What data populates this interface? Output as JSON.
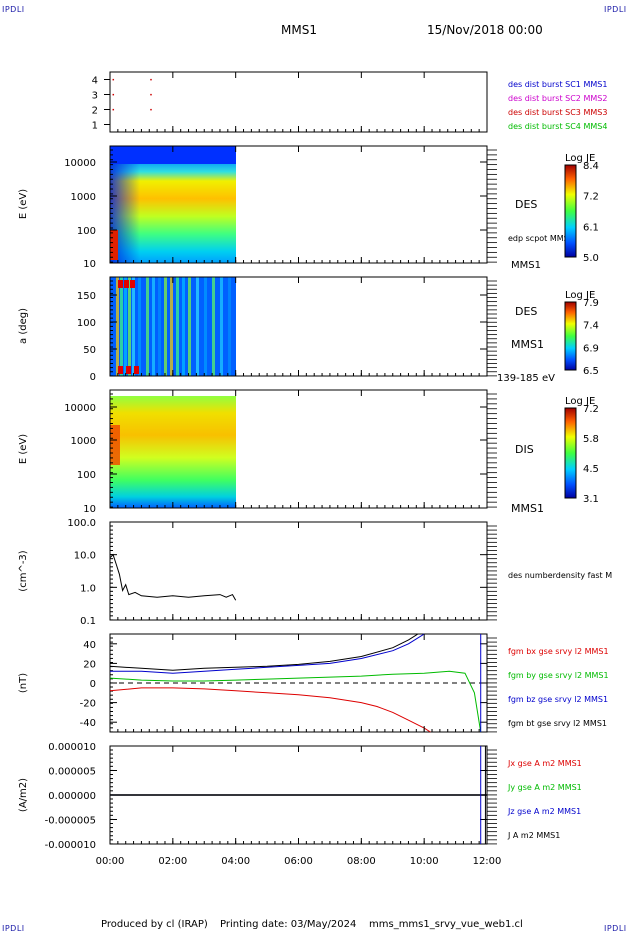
{
  "header": {
    "corner_label": "IPDLI",
    "spacecraft": "MMS1",
    "datetime": "15/Nov/2018 00:00"
  },
  "footer": {
    "produced_by": "Produced by cl (IRAP)",
    "printing_date": "Printing date: 03/May/2024",
    "filename": "mms_mms1_srvy_vue_web1.cl"
  },
  "colors": {
    "mms1": "#0000cc",
    "mms2": "#cc00cc",
    "mms3": "#cc0000",
    "mms4": "#00bb00",
    "black": "#000000",
    "blue": "#0000cc",
    "green": "#00bb00",
    "red": "#dd0000"
  },
  "chart_data": [
    {
      "type": "scatter",
      "panel": "burst",
      "yticks": [
        "1",
        "2",
        "3",
        "4"
      ],
      "ylim": [
        0.5,
        4.5
      ],
      "xlim": [
        0,
        12
      ],
      "legend": [
        {
          "name": "des dist burst SC1 MMS1",
          "color": "#0000cc"
        },
        {
          "name": "des dist burst SC2 MMS2",
          "color": "#cc00cc"
        },
        {
          "name": "des dist burst SC3 MMS3",
          "color": "#cc0000"
        },
        {
          "name": "des dist burst SC4 MMS4",
          "color": "#00bb00"
        }
      ],
      "points": [
        {
          "x": 0.1,
          "y": 4,
          "color": "#cc0000"
        },
        {
          "x": 1.3,
          "y": 4,
          "color": "#cc0000"
        },
        {
          "x": 0.1,
          "y": 3,
          "color": "#cc0000"
        },
        {
          "x": 1.3,
          "y": 3,
          "color": "#cc0000"
        },
        {
          "x": 0.1,
          "y": 2,
          "color": "#cc0000"
        },
        {
          "x": 1.3,
          "y": 2,
          "color": "#cc0000"
        }
      ]
    },
    {
      "type": "heatmap",
      "panel": "des_energy",
      "ylabel": "E (eV)",
      "yticks": [
        "10",
        "100",
        "1000",
        "10000"
      ],
      "side_label": "DES",
      "side_label2": "edp scpot MMS1",
      "side_label3": "MMS1",
      "colorbar": {
        "title": "Log JE",
        "ticks": [
          "8.4",
          "7.2",
          "6.1",
          "5.0"
        ],
        "range": [
          5.0,
          8.4
        ]
      },
      "x_range": [
        0,
        4.0
      ]
    },
    {
      "type": "heatmap",
      "panel": "des_pitch",
      "ylabel": "a (deg)",
      "yticks": [
        "0",
        "50",
        "100",
        "150"
      ],
      "side_label": "DES",
      "side_label2": "MMS1",
      "side_label3": "139-185 eV",
      "colorbar": {
        "title": "Log JE",
        "ticks": [
          "7.9",
          "7.4",
          "6.9",
          "6.5"
        ],
        "range": [
          6.5,
          7.9
        ]
      },
      "x_range": [
        0,
        4.0
      ]
    },
    {
      "type": "heatmap",
      "panel": "dis_energy",
      "ylabel": "E (eV)",
      "yticks": [
        "10",
        "100",
        "1000",
        "10000"
      ],
      "side_label": "DIS",
      "side_label2": "MMS1",
      "colorbar": {
        "title": "Log JE",
        "ticks": [
          "7.2",
          "5.8",
          "4.5",
          "3.1"
        ],
        "range": [
          3.1,
          7.2
        ]
      },
      "x_range": [
        0,
        4.0
      ]
    },
    {
      "type": "line",
      "panel": "density",
      "ylabel": "(cm^-3)",
      "yticks": [
        "0.1",
        "1.0",
        "10.0",
        "100.0"
      ],
      "ylim_log": [
        0.1,
        100
      ],
      "series": [
        {
          "name": "des numberdensity fast M",
          "color": "#000000",
          "x": [
            0.0,
            0.1,
            0.2,
            0.3,
            0.4,
            0.5,
            0.6,
            0.8,
            1.0,
            1.5,
            2.0,
            2.5,
            3.0,
            3.5,
            3.7,
            3.9,
            4.0
          ],
          "y": [
            8,
            10,
            5,
            2.5,
            0.8,
            1.2,
            0.6,
            0.7,
            0.55,
            0.5,
            0.55,
            0.5,
            0.55,
            0.6,
            0.5,
            0.6,
            0.4
          ]
        }
      ]
    },
    {
      "type": "line",
      "panel": "magnetic",
      "ylabel": "(nT)",
      "yticks": [
        "-40",
        "-20",
        "0",
        "20",
        "40"
      ],
      "ylim": [
        -50,
        50
      ],
      "vline_x": 11.8,
      "series": [
        {
          "name": "fgm bx gse srvy l2 MMS1",
          "color": "#dd0000",
          "x": [
            0,
            1,
            2,
            3,
            4,
            5,
            6,
            7,
            8,
            8.5,
            9,
            9.5,
            10,
            10.2
          ],
          "y": [
            -8,
            -5,
            -5,
            -6,
            -8,
            -10,
            -12,
            -15,
            -20,
            -24,
            -30,
            -38,
            -46,
            -50
          ]
        },
        {
          "name": "fgm by gse srvy l2 MMS1",
          "color": "#00bb00",
          "x": [
            0,
            1,
            2,
            3,
            4,
            5,
            6,
            7,
            8,
            9,
            10,
            10.8,
            11.3,
            11.6,
            11.8
          ],
          "y": [
            5,
            3,
            2,
            2,
            3,
            4,
            5,
            6,
            7,
            9,
            10,
            12,
            10,
            -10,
            -50
          ]
        },
        {
          "name": "fgm bz gse srvy l2 MMS1",
          "color": "#0000cc",
          "x": [
            0,
            1,
            2,
            3,
            4,
            5,
            6,
            7,
            8,
            9,
            9.5,
            10
          ],
          "y": [
            12,
            12,
            10,
            12,
            14,
            16,
            18,
            20,
            25,
            33,
            40,
            50
          ]
        },
        {
          "name": "fgm bt gse srvy l2 MMS1",
          "color": "#000000",
          "x": [
            0,
            1,
            2,
            3,
            4,
            5,
            6,
            7,
            8,
            9,
            9.5,
            9.8
          ],
          "y": [
            17,
            15,
            13,
            15,
            16,
            17,
            19,
            22,
            27,
            36,
            44,
            50
          ]
        }
      ]
    },
    {
      "type": "line",
      "panel": "current",
      "ylabel": "(A/m2)",
      "yticks": [
        "-0.000010",
        "-0.000005",
        "0.000000",
        "0.000005",
        "0.000010"
      ],
      "ylim": [
        -1e-05,
        1e-05
      ],
      "vline_x": 11.8,
      "series": [
        {
          "name": "Jx gse A m2 MMS1",
          "color": "#dd0000",
          "x": [
            0,
            12
          ],
          "y": [
            0,
            0
          ]
        },
        {
          "name": "Jy gse A m2 MMS1",
          "color": "#00bb00",
          "x": [
            0,
            12
          ],
          "y": [
            0,
            0
          ]
        },
        {
          "name": "Jz gse A m2 MMS1",
          "color": "#0000cc",
          "x": [
            0,
            12
          ],
          "y": [
            0,
            0
          ]
        },
        {
          "name": "J A m2 MMS1",
          "color": "#000000",
          "x": [
            0,
            12
          ],
          "y": [
            0,
            0
          ]
        }
      ]
    },
    {
      "type": "axis",
      "panel": "time",
      "xticks": [
        "00:00",
        "02:00",
        "04:00",
        "06:00",
        "08:00",
        "10:00",
        "12:00"
      ],
      "xlim": [
        0,
        12
      ]
    }
  ]
}
